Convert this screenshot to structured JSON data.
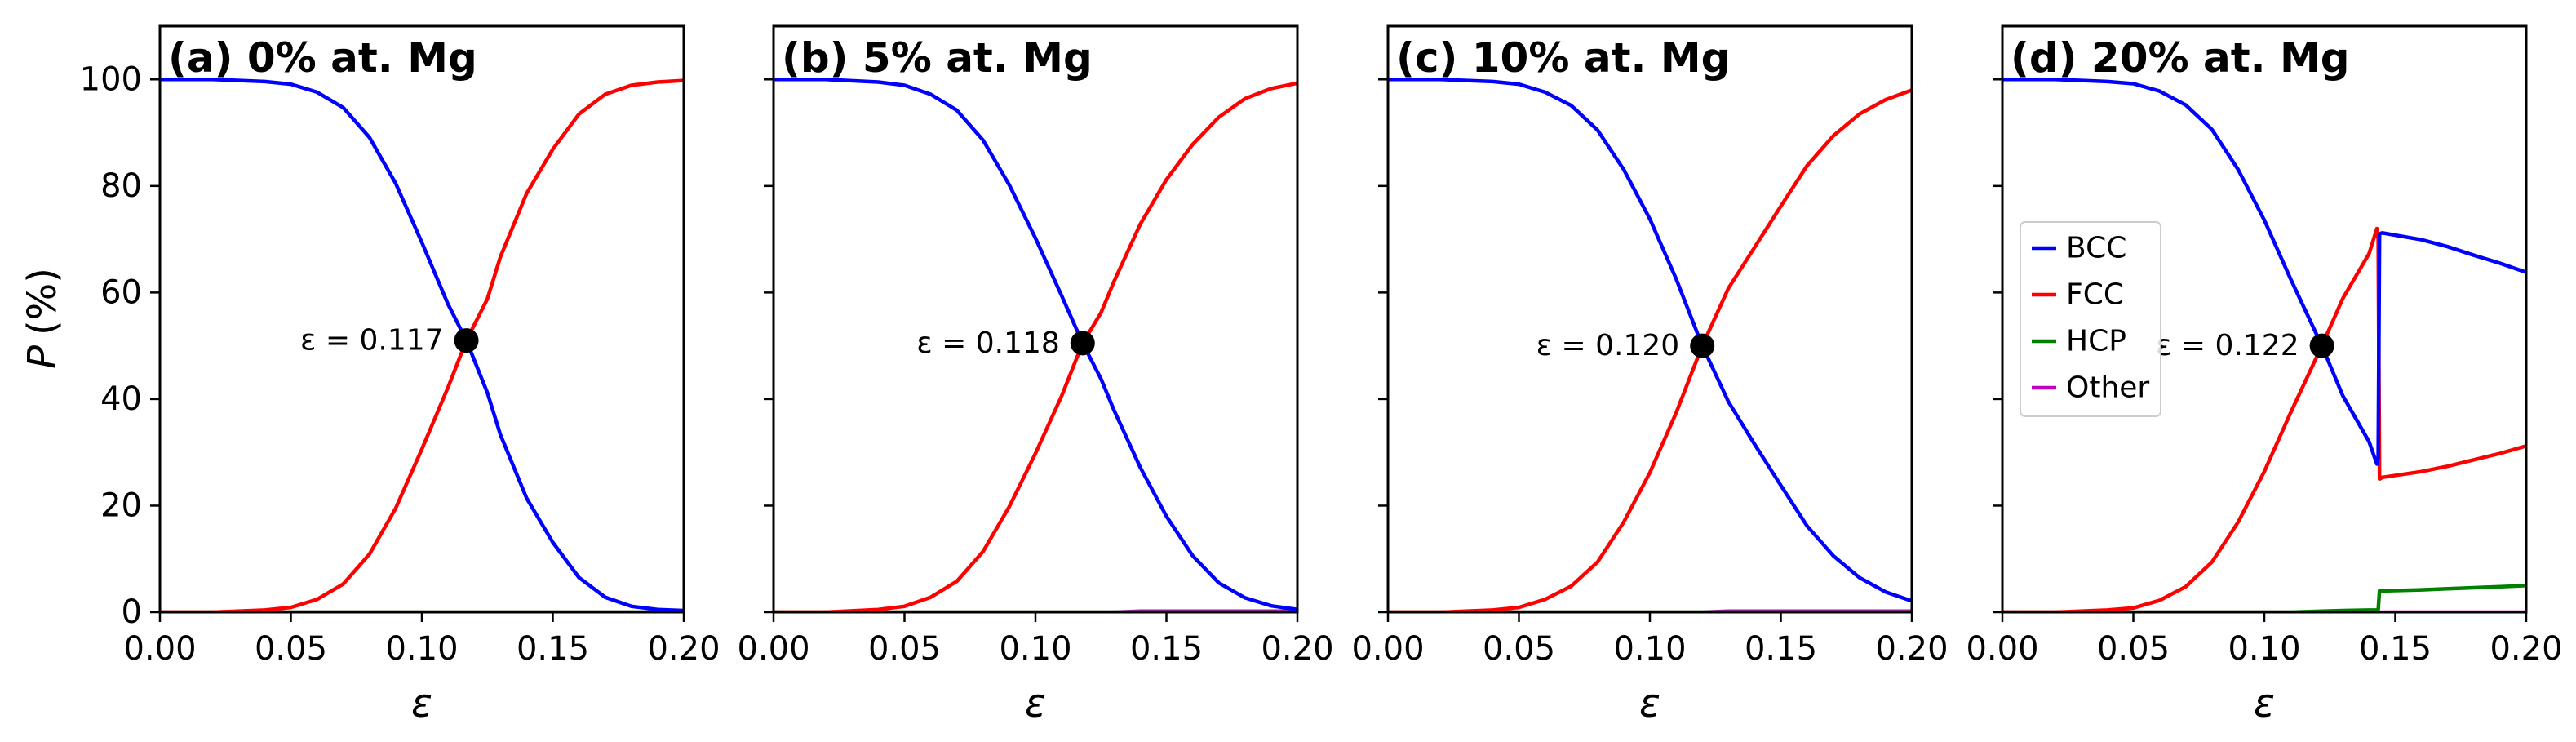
{
  "chart_data": [
    {
      "type": "line",
      "title": "(a) 0% at. Mg",
      "xlabel": "ε",
      "ylabel_symbol": "P",
      "ylabel_unit": "(%)",
      "xlim": [
        0,
        0.2
      ],
      "ylim": [
        0,
        110
      ],
      "xticks": [
        "0.00",
        "0.05",
        "0.10",
        "0.15",
        "0.20"
      ],
      "yticks": [
        "0",
        "20",
        "40",
        "60",
        "80",
        "100"
      ],
      "show_ytick_labels": true,
      "crossover": {
        "x": 0.117,
        "y": 51,
        "label": "ε = 0.117"
      },
      "x": [
        0,
        0.02,
        0.04,
        0.05,
        0.06,
        0.07,
        0.08,
        0.09,
        0.1,
        0.11,
        0.117,
        0.125,
        0.13,
        0.14,
        0.15,
        0.16,
        0.17,
        0.18,
        0.19,
        0.2
      ],
      "series": [
        {
          "name": "BCC",
          "color": "#0000ff",
          "values": [
            100,
            100,
            99.6,
            99.1,
            97.6,
            94.7,
            89.1,
            80.5,
            69.4,
            57.8,
            51,
            41.2,
            33.3,
            21.4,
            13.1,
            6.5,
            2.8,
            1.1,
            0.5,
            0.3
          ]
        },
        {
          "name": "FCC",
          "color": "#ff0000",
          "values": [
            0,
            0,
            0.4,
            0.9,
            2.4,
            5.3,
            10.9,
            19.5,
            30.6,
            42.2,
            51,
            58.8,
            66.7,
            78.6,
            86.9,
            93.5,
            97.2,
            98.9,
            99.5,
            99.8
          ]
        },
        {
          "name": "HCP",
          "color": "#008000",
          "values": [
            0,
            0,
            0,
            0,
            0,
            0,
            0,
            0,
            0,
            0,
            0,
            0,
            0,
            0,
            0,
            0,
            0,
            0,
            0,
            0
          ]
        },
        {
          "name": "Other",
          "color": "#bf00bf",
          "values": [
            0,
            0,
            0,
            0,
            0,
            0,
            0,
            0,
            0,
            0,
            0,
            0,
            0,
            0,
            0,
            0,
            0,
            0,
            0,
            0
          ]
        }
      ]
    },
    {
      "type": "line",
      "title": "(b) 5% at. Mg",
      "xlabel": "ε",
      "xlim": [
        0,
        0.2
      ],
      "ylim": [
        0,
        110
      ],
      "xticks": [
        "0.00",
        "0.05",
        "0.10",
        "0.15",
        "0.20"
      ],
      "show_ytick_labels": false,
      "crossover": {
        "x": 0.118,
        "y": 50.5,
        "label": "ε = 0.118"
      },
      "x": [
        0,
        0.02,
        0.04,
        0.05,
        0.06,
        0.07,
        0.08,
        0.09,
        0.1,
        0.11,
        0.118,
        0.125,
        0.13,
        0.14,
        0.15,
        0.16,
        0.17,
        0.18,
        0.19,
        0.2
      ],
      "series": [
        {
          "name": "BCC",
          "color": "#0000ff",
          "values": [
            100,
            100,
            99.5,
            98.9,
            97.2,
            94.2,
            88.6,
            80.2,
            70.2,
            59.4,
            50.5,
            43.8,
            37.9,
            27.2,
            18.0,
            10.6,
            5.5,
            2.7,
            1.2,
            0.5
          ]
        },
        {
          "name": "FCC",
          "color": "#ff0000",
          "values": [
            0,
            0,
            0.5,
            1.1,
            2.8,
            5.8,
            11.4,
            19.8,
            29.8,
            40.6,
            50.5,
            56.2,
            62.1,
            72.8,
            81.2,
            87.8,
            92.9,
            96.4,
            98.3,
            99.3
          ]
        },
        {
          "name": "HCP",
          "color": "#008000",
          "values": [
            0,
            0,
            0,
            0,
            0,
            0,
            0,
            0,
            0,
            0,
            0,
            0,
            0,
            0,
            0,
            0,
            0,
            0,
            0,
            0
          ]
        },
        {
          "name": "Other",
          "color": "#bf00bf",
          "values": [
            0,
            0,
            0,
            0,
            0,
            0,
            0,
            0,
            0,
            0,
            0,
            0,
            0,
            0.2,
            0.2,
            0.2,
            0.2,
            0.2,
            0.2,
            0.2
          ]
        }
      ]
    },
    {
      "type": "line",
      "title": "(c) 10% at. Mg",
      "xlabel": "ε",
      "xlim": [
        0,
        0.2
      ],
      "ylim": [
        0,
        110
      ],
      "xticks": [
        "0.00",
        "0.05",
        "0.10",
        "0.15",
        "0.20"
      ],
      "show_ytick_labels": false,
      "crossover": {
        "x": 0.12,
        "y": 50,
        "label": "ε = 0.120"
      },
      "x": [
        0,
        0.02,
        0.04,
        0.05,
        0.06,
        0.07,
        0.08,
        0.09,
        0.1,
        0.11,
        0.12,
        0.13,
        0.14,
        0.15,
        0.16,
        0.17,
        0.18,
        0.19,
        0.2
      ],
      "series": [
        {
          "name": "BCC",
          "color": "#0000ff",
          "values": [
            100,
            100,
            99.6,
            99.1,
            97.6,
            95.1,
            90.5,
            83.1,
            73.8,
            62.6,
            50.0,
            39.5,
            31.5,
            23.8,
            16.2,
            10.6,
            6.5,
            3.8,
            2.1
          ]
        },
        {
          "name": "FCC",
          "color": "#ff0000",
          "values": [
            0,
            0,
            0.4,
            0.9,
            2.4,
            4.9,
            9.4,
            16.9,
            26.2,
            37.4,
            50.0,
            60.8,
            68.5,
            76.2,
            83.8,
            89.4,
            93.5,
            96.2,
            98.0
          ]
        },
        {
          "name": "HCP",
          "color": "#008000",
          "values": [
            0,
            0,
            0,
            0,
            0,
            0,
            0,
            0,
            0,
            0,
            0,
            0,
            0,
            0,
            0,
            0,
            0,
            0,
            0
          ]
        },
        {
          "name": "Other",
          "color": "#bf00bf",
          "values": [
            0,
            0,
            0,
            0,
            0,
            0,
            0,
            0,
            0,
            0,
            0,
            0.2,
            0.2,
            0.2,
            0.2,
            0.2,
            0.2,
            0.2,
            0.2
          ]
        }
      ]
    },
    {
      "type": "line",
      "title": "(d) 20% at. Mg",
      "xlabel": "ε",
      "xlim": [
        0,
        0.2
      ],
      "ylim": [
        0,
        110
      ],
      "xticks": [
        "0.00",
        "0.05",
        "0.10",
        "0.15",
        "0.20"
      ],
      "show_ytick_labels": false,
      "crossover": {
        "x": 0.122,
        "y": 50,
        "label": "ε = 0.122"
      },
      "legend": {
        "location": "center-left",
        "entries": [
          "BCC",
          "FCC",
          "HCP",
          "Other"
        ]
      },
      "x": [
        0,
        0.02,
        0.04,
        0.05,
        0.06,
        0.07,
        0.08,
        0.09,
        0.1,
        0.11,
        0.122,
        0.13,
        0.14,
        0.143,
        0.1435,
        0.144,
        0.145,
        0.16,
        0.17,
        0.18,
        0.19,
        0.2
      ],
      "series": [
        {
          "name": "BCC",
          "color": "#0000ff",
          "values": [
            100,
            100,
            99.6,
            99.2,
            97.8,
            95.2,
            90.6,
            83.1,
            73.6,
            62.6,
            50.0,
            40.6,
            32.0,
            27.8,
            29.0,
            71.0,
            71.2,
            69.9,
            68.6,
            67.0,
            65.5,
            63.8
          ]
        },
        {
          "name": "FCC",
          "color": "#ff0000",
          "values": [
            0,
            0,
            0.4,
            0.8,
            2.2,
            4.8,
            9.4,
            16.9,
            26.4,
            37.4,
            50.0,
            58.9,
            67.3,
            72.0,
            70.0,
            25.0,
            25.3,
            26.4,
            27.4,
            28.6,
            29.8,
            31.2
          ]
        },
        {
          "name": "HCP",
          "color": "#008000",
          "values": [
            0,
            0,
            0,
            0,
            0,
            0,
            0,
            0,
            0,
            0,
            0.2,
            0.3,
            0.4,
            0.4,
            0.5,
            4.0,
            4.0,
            4.2,
            4.4,
            4.6,
            4.8,
            5.0
          ]
        },
        {
          "name": "Other",
          "color": "#bf00bf",
          "values": [
            0,
            0,
            0,
            0,
            0,
            0,
            0,
            0,
            0,
            0,
            0,
            0,
            0,
            0,
            0,
            0,
            0,
            0,
            0,
            0,
            0,
            0
          ]
        }
      ]
    }
  ]
}
